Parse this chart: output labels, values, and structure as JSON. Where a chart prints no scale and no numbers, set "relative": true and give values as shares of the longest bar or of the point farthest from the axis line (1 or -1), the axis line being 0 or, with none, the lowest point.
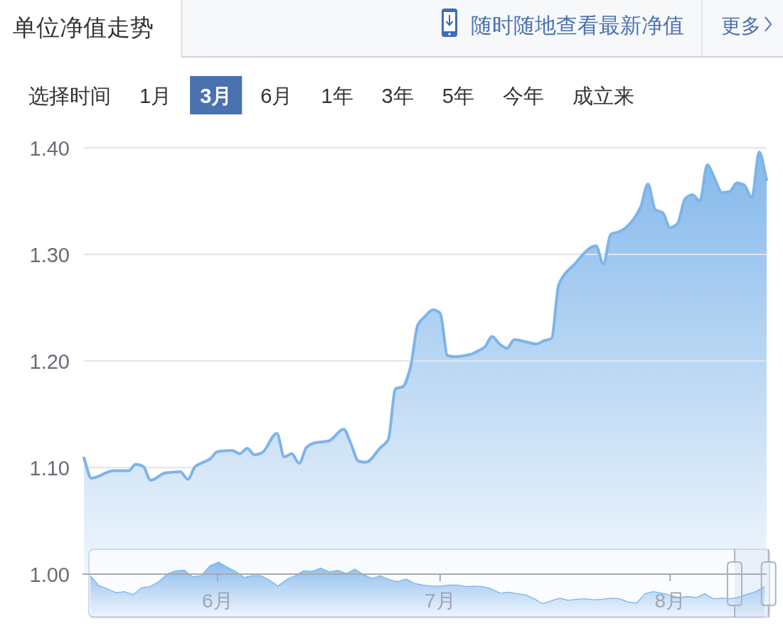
{
  "chart_data": [
    {
      "type": "area",
      "title": "单位净值走势",
      "annotations": [
        "随时随地查看最新净值",
        "更多",
        "选择时间",
        "1月",
        "3月",
        "6月",
        "1年",
        "3年",
        "5年",
        "今年",
        "成立来"
      ],
      "x": [
        "--05-14",
        "--05-15",
        "--05-18",
        "--05-20",
        "--05-21",
        "--05-22",
        "--05-23",
        "--05-25",
        "--05-27",
        "--05-28",
        "--05-29",
        "--05-31",
        "--06-01",
        "--06-03",
        "--06-04",
        "--06-05",
        "--06-06",
        "--06-07",
        "--06-09",
        "--06-10",
        "--06-11",
        "--06-12",
        "--06-13",
        "--06-14",
        "--06-16",
        "--06-18",
        "--06-19",
        "--06-20",
        "--06-21",
        "--06-23",
        "--06-24",
        "--06-25",
        "--06-26",
        "--06-27",
        "--06-28",
        "--06-29",
        "--06-30",
        "--07-01",
        "--07-02",
        "--07-03",
        "--07-05",
        "--07-06",
        "--07-07",
        "--07-08",
        "--07-09",
        "--07-10",
        "--07-11",
        "--07-14",
        "--07-15",
        "--07-16",
        "--07-17",
        "--07-19",
        "--07-22",
        "--07-23",
        "--07-24",
        "--07-25",
        "--07-26",
        "--07-28",
        "--07-29",
        "--07-30",
        "--07-31",
        "--08-01",
        "--08-02",
        "--08-03",
        "--08-04",
        "--08-05",
        "--08-06",
        "--08-07",
        "--08-08",
        "--08-09",
        "--08-10",
        "--08-11",
        "--08-12",
        "--08-13",
        "--08-14"
      ],
      "values": [
        1.109,
        1.09,
        1.097,
        1.097,
        1.103,
        1.101,
        1.088,
        1.095,
        1.096,
        1.089,
        1.101,
        1.108,
        1.115,
        1.116,
        1.113,
        1.118,
        1.112,
        1.114,
        1.132,
        1.11,
        1.113,
        1.104,
        1.119,
        1.123,
        1.125,
        1.136,
        1.122,
        1.106,
        1.105,
        1.119,
        1.126,
        1.174,
        1.176,
        1.194,
        1.234,
        1.242,
        1.248,
        1.245,
        1.205,
        1.204,
        1.206,
        1.209,
        1.213,
        1.223,
        1.216,
        1.212,
        1.22,
        1.216,
        1.219,
        1.221,
        1.272,
        1.29,
        1.308,
        1.291,
        1.319,
        1.321,
        1.325,
        1.344,
        1.366,
        1.342,
        1.339,
        1.325,
        1.329,
        1.352,
        1.356,
        1.35,
        1.384,
        1.371,
        1.358,
        1.359,
        1.367,
        1.365,
        1.353,
        1.396,
        1.37
      ],
      "color": "#7db4ea",
      "xlim": [
        "--05-14",
        "--08-14"
      ],
      "xticks": [
        {
          "value": "--06-01",
          "label": "6月"
        },
        {
          "value": "--07-01",
          "label": "7月"
        },
        {
          "value": "--08-01",
          "label": "8月"
        }
      ],
      "ylim": [
        1.0,
        1.4
      ],
      "yticks": [
        {
          "value": 1.0,
          "label": "1.00"
        },
        {
          "value": 1.1,
          "label": "1.10"
        },
        {
          "value": 1.2,
          "label": "1.20"
        },
        {
          "value": 1.3,
          "label": "1.30"
        },
        {
          "value": 1.4,
          "label": "1.40"
        }
      ],
      "grid": "y"
    },
    {
      "type": "area",
      "relative": true,
      "color": "#7db4ea",
      "categories": [
        null,
        null,
        null,
        null,
        null,
        null,
        null,
        null,
        null,
        null,
        null,
        null,
        null,
        null,
        null,
        null,
        null,
        null,
        null,
        null,
        null,
        null,
        null,
        null,
        null,
        null,
        null,
        null,
        null,
        null,
        null,
        null,
        null,
        null,
        null,
        null,
        null,
        null,
        null,
        null,
        null,
        null,
        null,
        null,
        null,
        null,
        null,
        null,
        null,
        null,
        null,
        null,
        null,
        null,
        null,
        null,
        null,
        null,
        null,
        null,
        null,
        null,
        null,
        null,
        null,
        null,
        null,
        null,
        null,
        null,
        null,
        null,
        null,
        null,
        null,
        null,
        null,
        null,
        null,
        null
      ],
      "values": [
        0.75,
        0.57,
        0.51,
        0.44,
        0.46,
        0.4,
        0.53,
        0.55,
        0.64,
        0.78,
        0.84,
        0.85,
        0.73,
        0.75,
        0.93,
        1,
        0.91,
        0.83,
        0.72,
        0.75,
        0.75,
        0.67,
        0.56,
        0.68,
        0.75,
        0.84,
        0.83,
        0.89,
        0.82,
        0.85,
        0.79,
        0.87,
        0.77,
        0.7,
        0.75,
        0.68,
        0.64,
        0.69,
        0.61,
        0.58,
        0.56,
        0.56,
        0.58,
        0.58,
        0.55,
        0.56,
        0.55,
        0.51,
        0.43,
        0.45,
        0.42,
        0.4,
        0.33,
        0.24,
        0.29,
        0.34,
        0.3,
        0.32,
        0.33,
        0.31,
        0.32,
        0.34,
        0.33,
        0.27,
        0.25,
        0.42,
        0.46,
        0.43,
        0.39,
        0.35,
        0.37,
        0.35,
        0.42,
        0.33,
        0.34,
        0.33,
        0.36,
        0.41,
        0.46,
        0.55
      ]
    }
  ]
}
